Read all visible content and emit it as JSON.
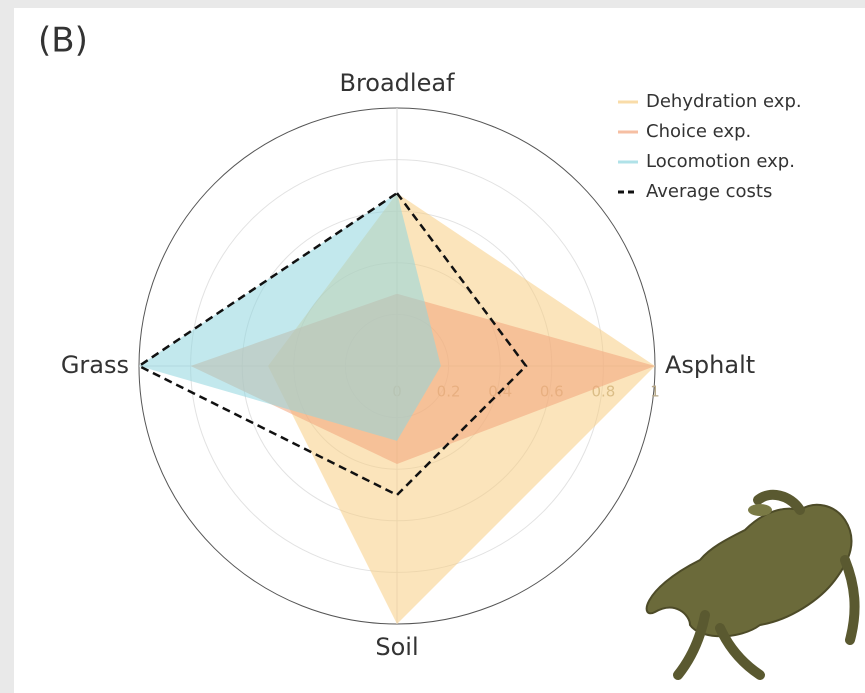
{
  "panel_label": "(B)",
  "chart_data": {
    "type": "radar",
    "categories": [
      "Broadleaf",
      "Asphalt",
      "Soil",
      "Grass"
    ],
    "rlim": [
      0,
      1
    ],
    "rticks": [
      0,
      0.2,
      0.4,
      0.6,
      0.8,
      1
    ],
    "legend": "top-right",
    "series": [
      {
        "name": "Dehydration exp.",
        "color": "#f7cd84",
        "style": "filled",
        "values": [
          0.67,
          1,
          1,
          0.5
        ]
      },
      {
        "name": "Choice exp.",
        "color": "#f2a47c",
        "style": "filled",
        "values": [
          0.28,
          1,
          0.38,
          0.8
        ]
      },
      {
        "name": "Locomotion exp.",
        "color": "#8fd5de",
        "style": "filled",
        "values": [
          0.67,
          0.17,
          0.29,
          1
        ]
      },
      {
        "name": "Average costs",
        "color": "#111111",
        "style": "dashed",
        "values": [
          0.67,
          0.5,
          0.5,
          1
        ]
      }
    ]
  }
}
